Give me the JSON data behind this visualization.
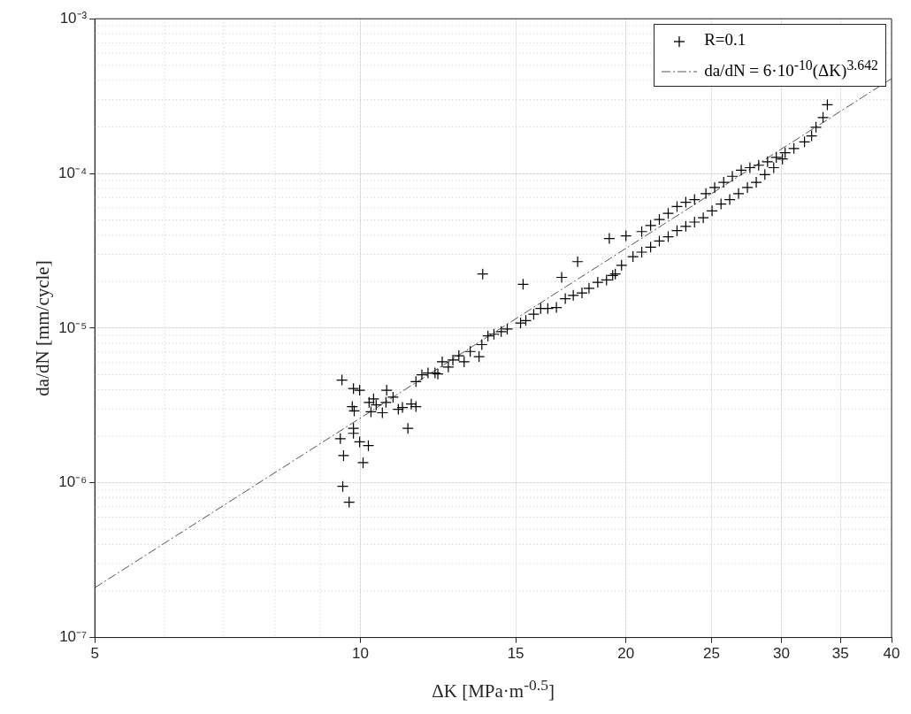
{
  "chart_data": {
    "type": "scatter",
    "xlabel": "ΔK [MPa·m$^{-0.5}$]",
    "ylabel": "da/dN [mm/cycle]",
    "xlim": [
      5,
      40
    ],
    "xticks": [
      5,
      10,
      15,
      20,
      25,
      30,
      35,
      40
    ],
    "ylim": [
      1e-07,
      0.001
    ],
    "yticks": [
      {
        "value": 1e-07,
        "label": "10⁻⁷"
      },
      {
        "value": 1e-06,
        "label": "10⁻⁶"
      },
      {
        "value": 1e-05,
        "label": "10⁻⁵"
      },
      {
        "value": 0.0001,
        "label": "10⁻⁴"
      },
      {
        "value": 0.001,
        "label": "10⁻³"
      }
    ],
    "log": "xy",
    "grid": true,
    "legend": "top right",
    "series": [
      {
        "name": "R=0.1",
        "type": "scatter",
        "marker": "cross",
        "color": "#000000",
        "x": [
          9.53,
          9.82,
          9.98,
          9.79,
          9.84,
          9.82,
          9.82,
          9.49,
          9.98,
          10.21,
          9.57,
          10.07,
          9.55,
          9.71,
          10.23,
          10.35,
          10.42,
          10.28,
          10.59,
          10.71,
          10.69,
          10.89,
          11.04,
          11.16,
          11.32,
          11.42,
          11.56,
          11.56,
          11.74,
          11.93,
          12.15,
          12.24,
          12.38,
          12.58,
          12.73,
          12.93,
          13.11,
          13.32,
          13.63,
          13.73,
          13.76,
          13.95,
          14.17,
          14.44,
          14.67,
          15.19,
          15.29,
          15.4,
          15.72,
          16.01,
          16.31,
          16.68,
          16.91,
          17.07,
          17.43,
          17.63,
          17.83,
          18.16,
          18.58,
          19.01,
          19.15,
          19.32,
          19.45,
          19.77,
          20.0,
          20.37,
          20.84,
          20.84,
          21.33,
          21.33,
          21.82,
          21.82,
          22.33,
          22.33,
          22.85,
          22.85,
          23.38,
          23.38,
          23.92,
          23.92,
          24.47,
          24.64,
          25.04,
          25.21,
          25.63,
          25.81,
          26.22,
          26.4,
          26.83,
          27.02,
          27.46,
          27.64,
          28.1,
          28.28,
          28.74,
          28.94,
          29.41,
          29.61,
          30.09,
          30.3,
          31.0,
          31.87,
          32.47,
          32.84,
          33.45,
          33.83
        ],
        "values": [
          4.62e-06,
          4.07e-06,
          3.97e-06,
          3.11e-06,
          2.92e-06,
          2.25e-06,
          2.09e-06,
          1.93e-06,
          1.84e-06,
          1.74e-06,
          1.5e-06,
          1.35e-06,
          9.5e-07,
          7.5e-07,
          3.31e-06,
          3.49e-06,
          3.19e-06,
          2.88e-06,
          2.84e-06,
          3.97e-06,
          3.31e-06,
          3.58e-06,
          2.99e-06,
          3.07e-06,
          2.25e-06,
          3.23e-06,
          3.11e-06,
          4.51e-06,
          5e-06,
          5.13e-06,
          5.13e-06,
          5.06e-06,
          6.06e-06,
          5.61e-06,
          6.22e-06,
          6.63e-06,
          6.06e-06,
          7.07e-06,
          6.55e-06,
          7.83e-06,
          2.24e-05,
          8.91e-06,
          9.14e-06,
          9.5e-06,
          9.87e-06,
          1.08e-05,
          1.92e-05,
          1.12e-05,
          1.23e-05,
          1.34e-05,
          1.34e-05,
          1.36e-05,
          2.13e-05,
          1.55e-05,
          1.63e-05,
          2.69e-05,
          1.69e-05,
          1.81e-05,
          1.98e-05,
          2.05e-05,
          3.8e-05,
          2.19e-05,
          2.24e-05,
          2.55e-05,
          3.95e-05,
          2.9e-05,
          4.21e-05,
          3.1e-05,
          4.61e-05,
          3.34e-05,
          5.04e-05,
          3.66e-05,
          5.52e-05,
          3.9e-05,
          6.11e-05,
          4.27e-05,
          6.52e-05,
          4.55e-05,
          6.78e-05,
          4.85e-05,
          5.17e-05,
          7.41e-05,
          5.73e-05,
          8.11e-05,
          6.35e-05,
          8.76e-05,
          6.78e-05,
          9.59e-05,
          7.41e-05,
          0.000105,
          8.11e-05,
          0.000109,
          8.76e-05,
          0.000113,
          9.84e-05,
          0.000119,
          0.000109,
          0.000127,
          0.000124,
          0.000136,
          0.000145,
          0.00016,
          0.000175,
          0.000199,
          0.00023,
          0.000278
        ]
      },
      {
        "name": "da/dN = 6·10$^{-10}$(ΔK)$^{3.642}$",
        "type": "line",
        "marker": "none",
        "line_style": "dashed",
        "color": "#555555",
        "x": [
          5,
          40
        ],
        "values": [
          2.1e-07,
          0.00041
        ]
      }
    ]
  }
}
